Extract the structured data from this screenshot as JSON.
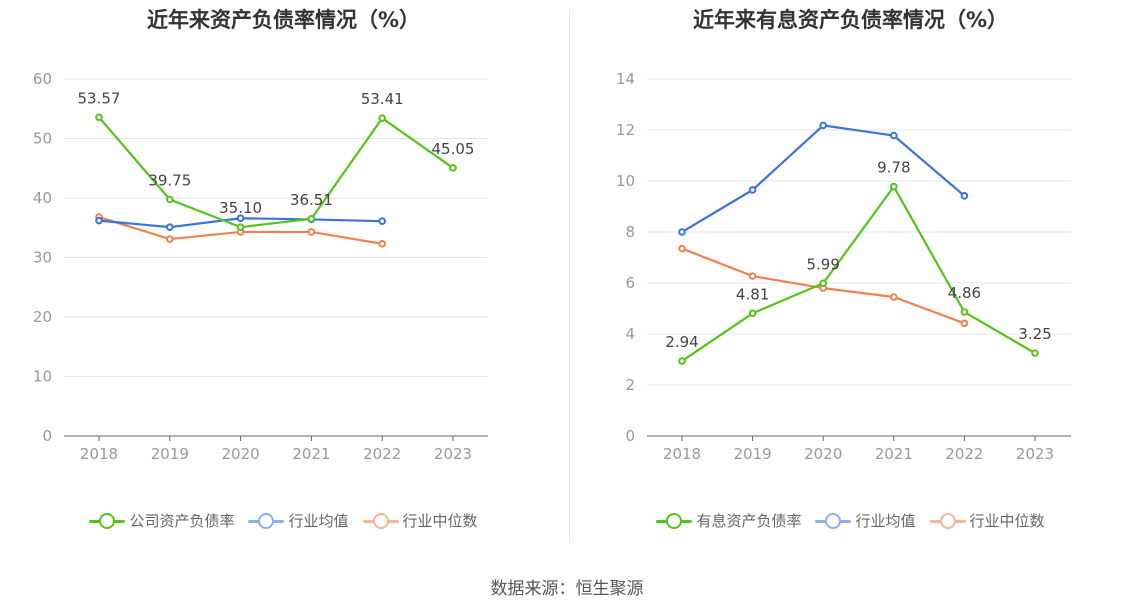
{
  "source": "数据来源：恒生聚源",
  "chart_data": [
    {
      "type": "line",
      "title": "近年来资产负债率情况（%）",
      "categories": [
        "2018",
        "2019",
        "2020",
        "2021",
        "2022",
        "2023"
      ],
      "y_ticks": [
        "0",
        "10",
        "20",
        "30",
        "40",
        "50",
        "60"
      ],
      "ylim": [
        0,
        60
      ],
      "grid": true,
      "legend_position": "bottom",
      "series": [
        {
          "name": "公司资产负债率",
          "color": "#52c41a",
          "values": [
            53.57,
            39.75,
            35.1,
            36.51,
            53.41,
            45.05
          ],
          "labels": [
            "53.57",
            "39.75",
            "35.10",
            "36.51",
            "53.41",
            "45.05"
          ]
        },
        {
          "name": "行业均值",
          "color": "#3b73de",
          "values": [
            36.2,
            35.1,
            36.6,
            36.4,
            36.1,
            null
          ]
        },
        {
          "name": "行业中位数",
          "color": "#f08050",
          "values": [
            36.8,
            33.1,
            34.3,
            34.3,
            32.3,
            null
          ]
        }
      ]
    },
    {
      "type": "line",
      "title": "近年来有息资产负债率情况（%）",
      "categories": [
        "2018",
        "2019",
        "2020",
        "2021",
        "2022",
        "2023"
      ],
      "y_ticks": [
        "0",
        "2",
        "4",
        "6",
        "8",
        "10",
        "12",
        "14"
      ],
      "ylim": [
        0,
        14
      ],
      "grid": true,
      "legend_position": "bottom",
      "series": [
        {
          "name": "有息资产负债率",
          "color": "#52c41a",
          "values": [
            2.94,
            4.81,
            5.99,
            9.78,
            4.86,
            3.25
          ],
          "labels": [
            "2.94",
            "4.81",
            "5.99",
            "9.78",
            "4.86",
            "3.25"
          ]
        },
        {
          "name": "行业均值",
          "color": "#3b73de",
          "values": [
            8.0,
            9.65,
            12.18,
            11.78,
            9.42,
            null
          ]
        },
        {
          "name": "行业中位数",
          "color": "#f08050",
          "values": [
            7.35,
            6.27,
            5.8,
            5.45,
            4.42,
            null
          ]
        }
      ]
    }
  ]
}
